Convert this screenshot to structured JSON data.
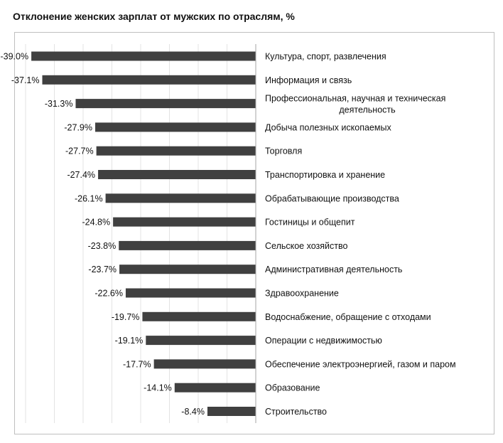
{
  "chart_data": {
    "type": "bar",
    "orientation": "horizontal",
    "title": "Отклонение женских зарплат от мужских по отраслям, %",
    "xlabel": "",
    "ylabel": "",
    "xlim": [
      -40,
      0
    ],
    "grid": true,
    "bar_color": "#404040",
    "categories": [
      [
        "Культура, спорт, развлечения"
      ],
      [
        "Информация и связь"
      ],
      [
        "Профессиональная, научная и техническая",
        "деятельность"
      ],
      [
        "Добыча полезных ископаемых"
      ],
      [
        "Торговля"
      ],
      [
        "Транспортировка и хранение"
      ],
      [
        "Обрабатывающие производства"
      ],
      [
        "Гостиницы и общепит"
      ],
      [
        "Сельское хозяйство"
      ],
      [
        "Административная деятельность"
      ],
      [
        "Здравоохранение"
      ],
      [
        "Водоснабжение, обращение с отходами"
      ],
      [
        "Операции с недвижимостью"
      ],
      [
        "Обеспечение электроэнергией, газом и паром"
      ],
      [
        "Образование"
      ],
      [
        "Строительство"
      ]
    ],
    "values": [
      -39.0,
      -37.1,
      -31.3,
      -27.9,
      -27.7,
      -27.4,
      -26.1,
      -24.8,
      -23.8,
      -23.7,
      -22.6,
      -19.7,
      -19.1,
      -17.7,
      -14.1,
      -8.4
    ],
    "value_labels": [
      "-39.0%",
      "-37.1%",
      "-31.3%",
      "-27.9%",
      "-27.7%",
      "-27.4%",
      "-26.1%",
      "-24.8%",
      "-23.8%",
      "-23.7%",
      "-22.6%",
      "-19.7%",
      "-19.1%",
      "-17.7%",
      "-14.1%",
      "-8.4%"
    ]
  }
}
